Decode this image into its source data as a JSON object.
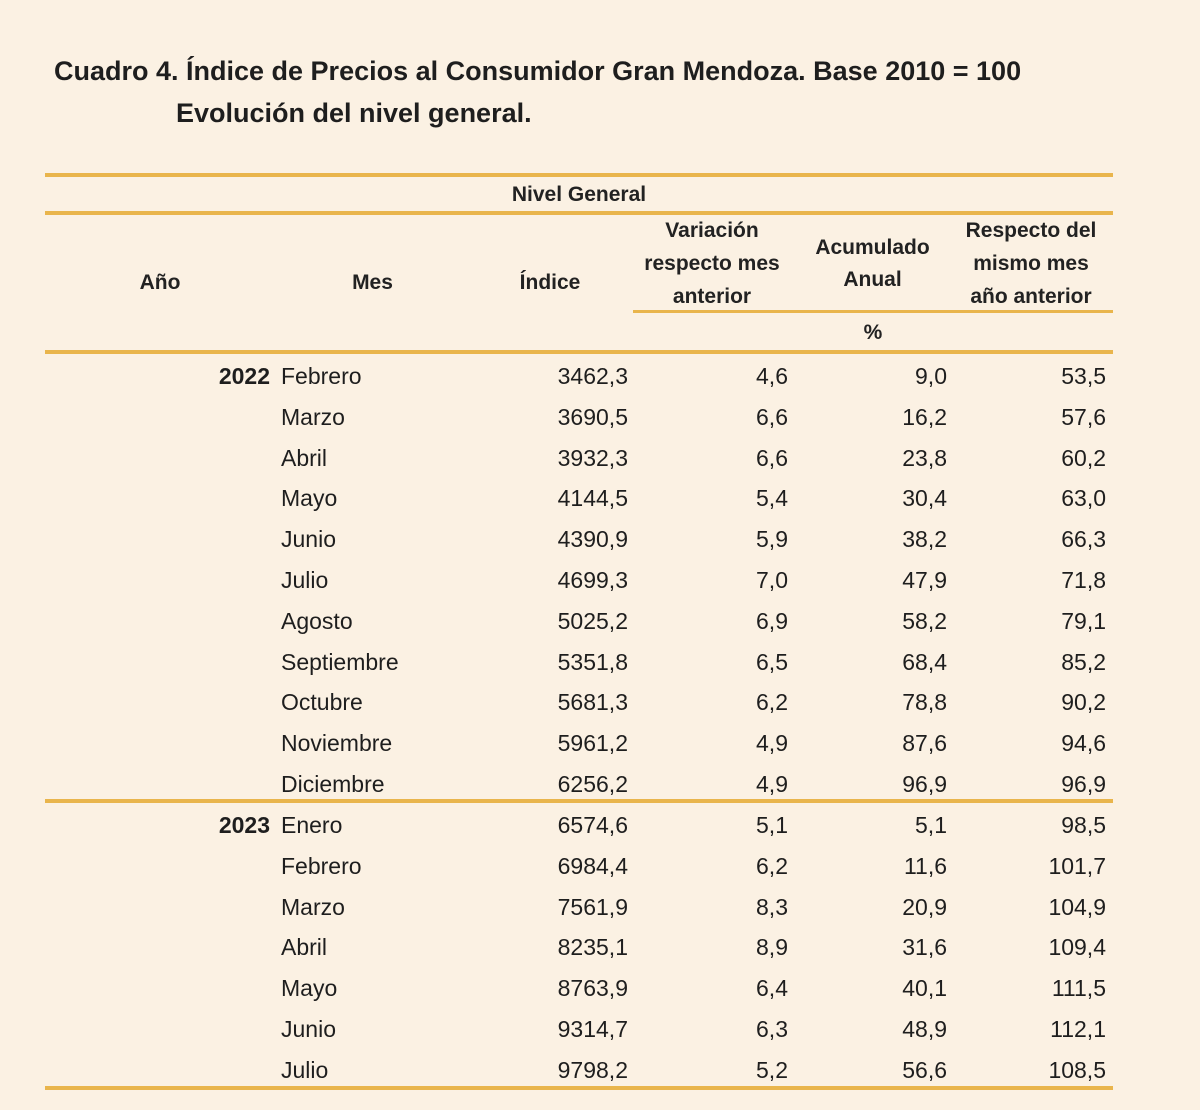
{
  "title_line1": "Cuadro 4. Índice de Precios al Consumidor Gran Mendoza. Base 2010 = 100",
  "title_line2": "Evolución del nivel general.",
  "group_header": "Nivel General",
  "columns": {
    "anio": "Año",
    "mes": "Mes",
    "indice": "Índice",
    "variacion": "Variación respecto mes anterior",
    "acumulado": "Acumulado Anual",
    "respecto": "Respecto del mismo mes año anterior",
    "unit": "%"
  },
  "line_color": "#e9b54c",
  "rows": [
    {
      "anio": "2022",
      "mes": "Febrero",
      "indice": "3462,3",
      "variacion": "4,6",
      "acumulado": "9,0",
      "respecto": "53,5"
    },
    {
      "anio": "",
      "mes": "Marzo",
      "indice": "3690,5",
      "variacion": "6,6",
      "acumulado": "16,2",
      "respecto": "57,6"
    },
    {
      "anio": "",
      "mes": "Abril",
      "indice": "3932,3",
      "variacion": "6,6",
      "acumulado": "23,8",
      "respecto": "60,2"
    },
    {
      "anio": "",
      "mes": "Mayo",
      "indice": "4144,5",
      "variacion": "5,4",
      "acumulado": "30,4",
      "respecto": "63,0"
    },
    {
      "anio": "",
      "mes": "Junio",
      "indice": "4390,9",
      "variacion": "5,9",
      "acumulado": "38,2",
      "respecto": "66,3"
    },
    {
      "anio": "",
      "mes": "Julio",
      "indice": "4699,3",
      "variacion": "7,0",
      "acumulado": "47,9",
      "respecto": "71,8"
    },
    {
      "anio": "",
      "mes": "Agosto",
      "indice": "5025,2",
      "variacion": "6,9",
      "acumulado": "58,2",
      "respecto": "79,1"
    },
    {
      "anio": "",
      "mes": "Septiembre",
      "indice": "5351,8",
      "variacion": "6,5",
      "acumulado": "68,4",
      "respecto": "85,2"
    },
    {
      "anio": "",
      "mes": "Octubre",
      "indice": "5681,3",
      "variacion": "6,2",
      "acumulado": "78,8",
      "respecto": "90,2"
    },
    {
      "anio": "",
      "mes": "Noviembre",
      "indice": "5961,2",
      "variacion": "4,9",
      "acumulado": "87,6",
      "respecto": "94,6"
    },
    {
      "anio": "",
      "mes": "Diciembre",
      "indice": "6256,2",
      "variacion": "4,9",
      "acumulado": "96,9",
      "respecto": "96,9"
    },
    {
      "anio": "2023",
      "mes": "Enero",
      "indice": "6574,6",
      "variacion": "5,1",
      "acumulado": "5,1",
      "respecto": "98,5"
    },
    {
      "anio": "",
      "mes": "Febrero",
      "indice": "6984,4",
      "variacion": "6,2",
      "acumulado": "11,6",
      "respecto": "101,7"
    },
    {
      "anio": "",
      "mes": "Marzo",
      "indice": "7561,9",
      "variacion": "8,3",
      "acumulado": "20,9",
      "respecto": "104,9"
    },
    {
      "anio": "",
      "mes": "Abril",
      "indice": "8235,1",
      "variacion": "8,9",
      "acumulado": "31,6",
      "respecto": "109,4"
    },
    {
      "anio": "",
      "mes": "Mayo",
      "indice": "8763,9",
      "variacion": "6,4",
      "acumulado": "40,1",
      "respecto": "111,5"
    },
    {
      "anio": "",
      "mes": "Junio",
      "indice": "9314,7",
      "variacion": "6,3",
      "acumulado": "48,9",
      "respecto": "112,1"
    },
    {
      "anio": "",
      "mes": "Julio",
      "indice": "9798,2",
      "variacion": "5,2",
      "acumulado": "56,6",
      "respecto": "108,5"
    }
  ]
}
